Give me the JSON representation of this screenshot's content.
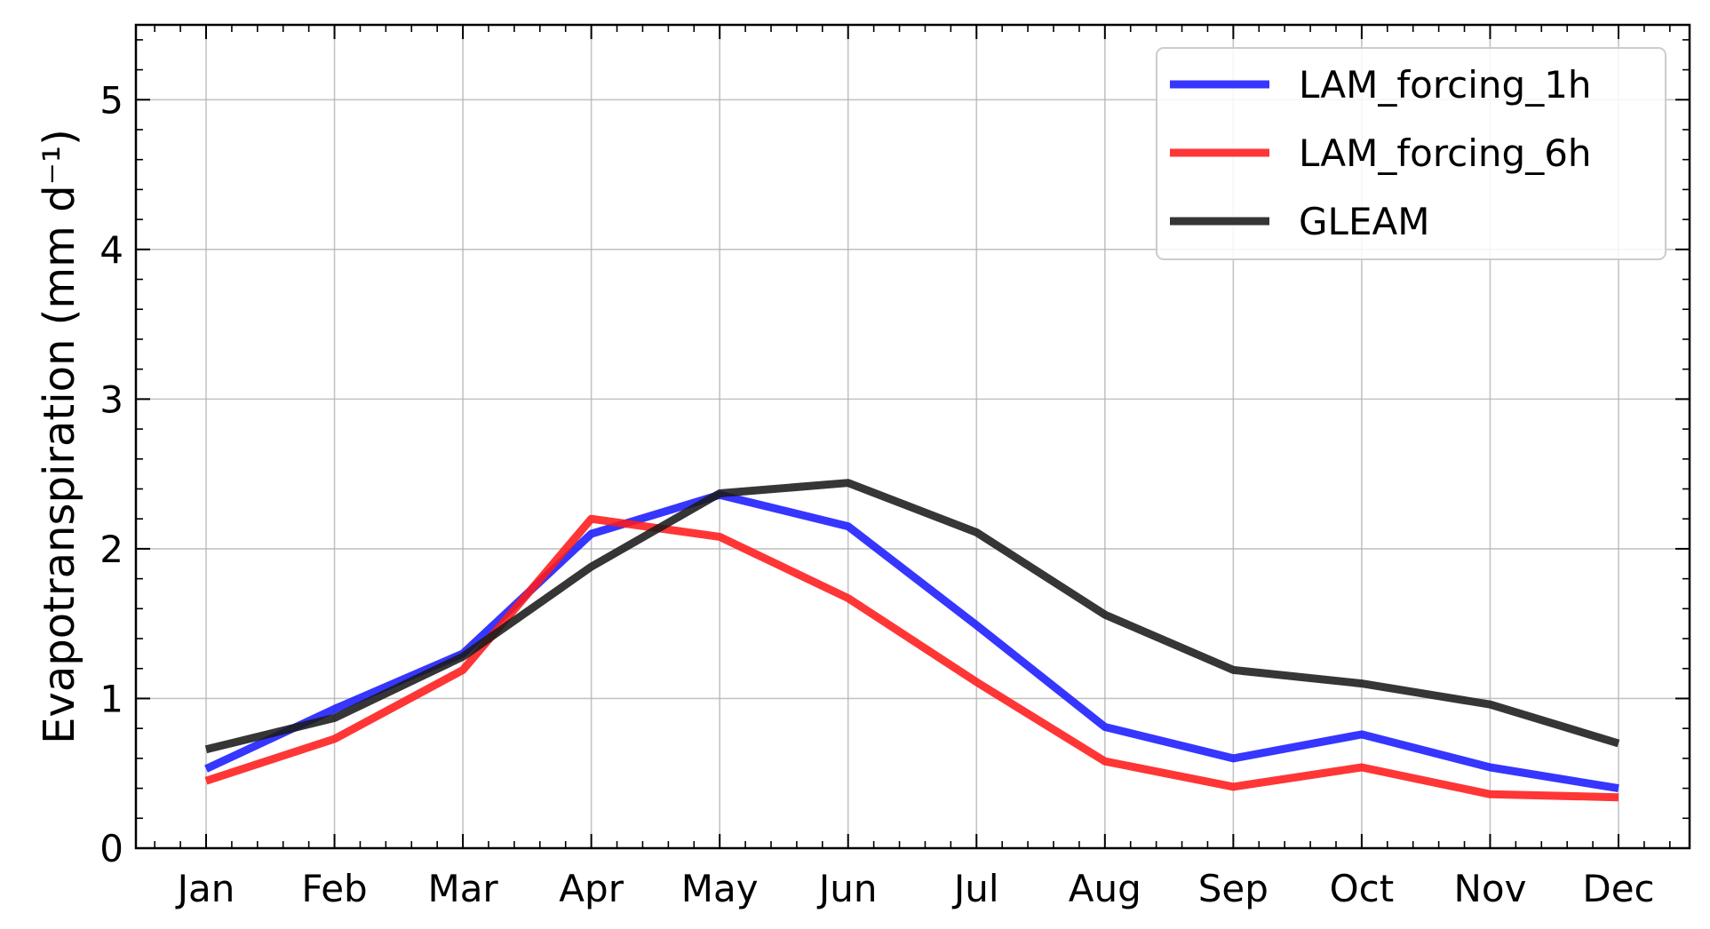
{
  "chart_data": {
    "type": "line",
    "title": "",
    "xlabel": "",
    "ylabel": "Evapotranspiration (mm d⁻¹)",
    "categories": [
      "Jan",
      "Feb",
      "Mar",
      "Apr",
      "May",
      "Jun",
      "Jul",
      "Aug",
      "Sep",
      "Oct",
      "Nov",
      "Dec"
    ],
    "ylim": [
      0,
      5.5
    ],
    "yticks": [
      "0",
      "1",
      "2",
      "3",
      "4",
      "5"
    ],
    "grid": true,
    "legend_position": "top-right",
    "series": [
      {
        "name": "LAM_forcing_1h",
        "color": "#1a1aff",
        "values": [
          0.53,
          0.93,
          1.3,
          2.1,
          2.36,
          2.15,
          1.49,
          0.81,
          0.6,
          0.76,
          0.54,
          0.4
        ]
      },
      {
        "name": "LAM_forcing_6h",
        "color": "#ff1a1a",
        "values": [
          0.45,
          0.73,
          1.19,
          2.2,
          2.08,
          1.67,
          1.11,
          0.58,
          0.41,
          0.54,
          0.36,
          0.34
        ]
      },
      {
        "name": "GLEAM",
        "color": "#1a1a1a",
        "values": [
          0.66,
          0.87,
          1.28,
          1.88,
          2.37,
          2.44,
          2.11,
          1.56,
          1.19,
          1.1,
          0.96,
          0.7
        ]
      }
    ]
  }
}
